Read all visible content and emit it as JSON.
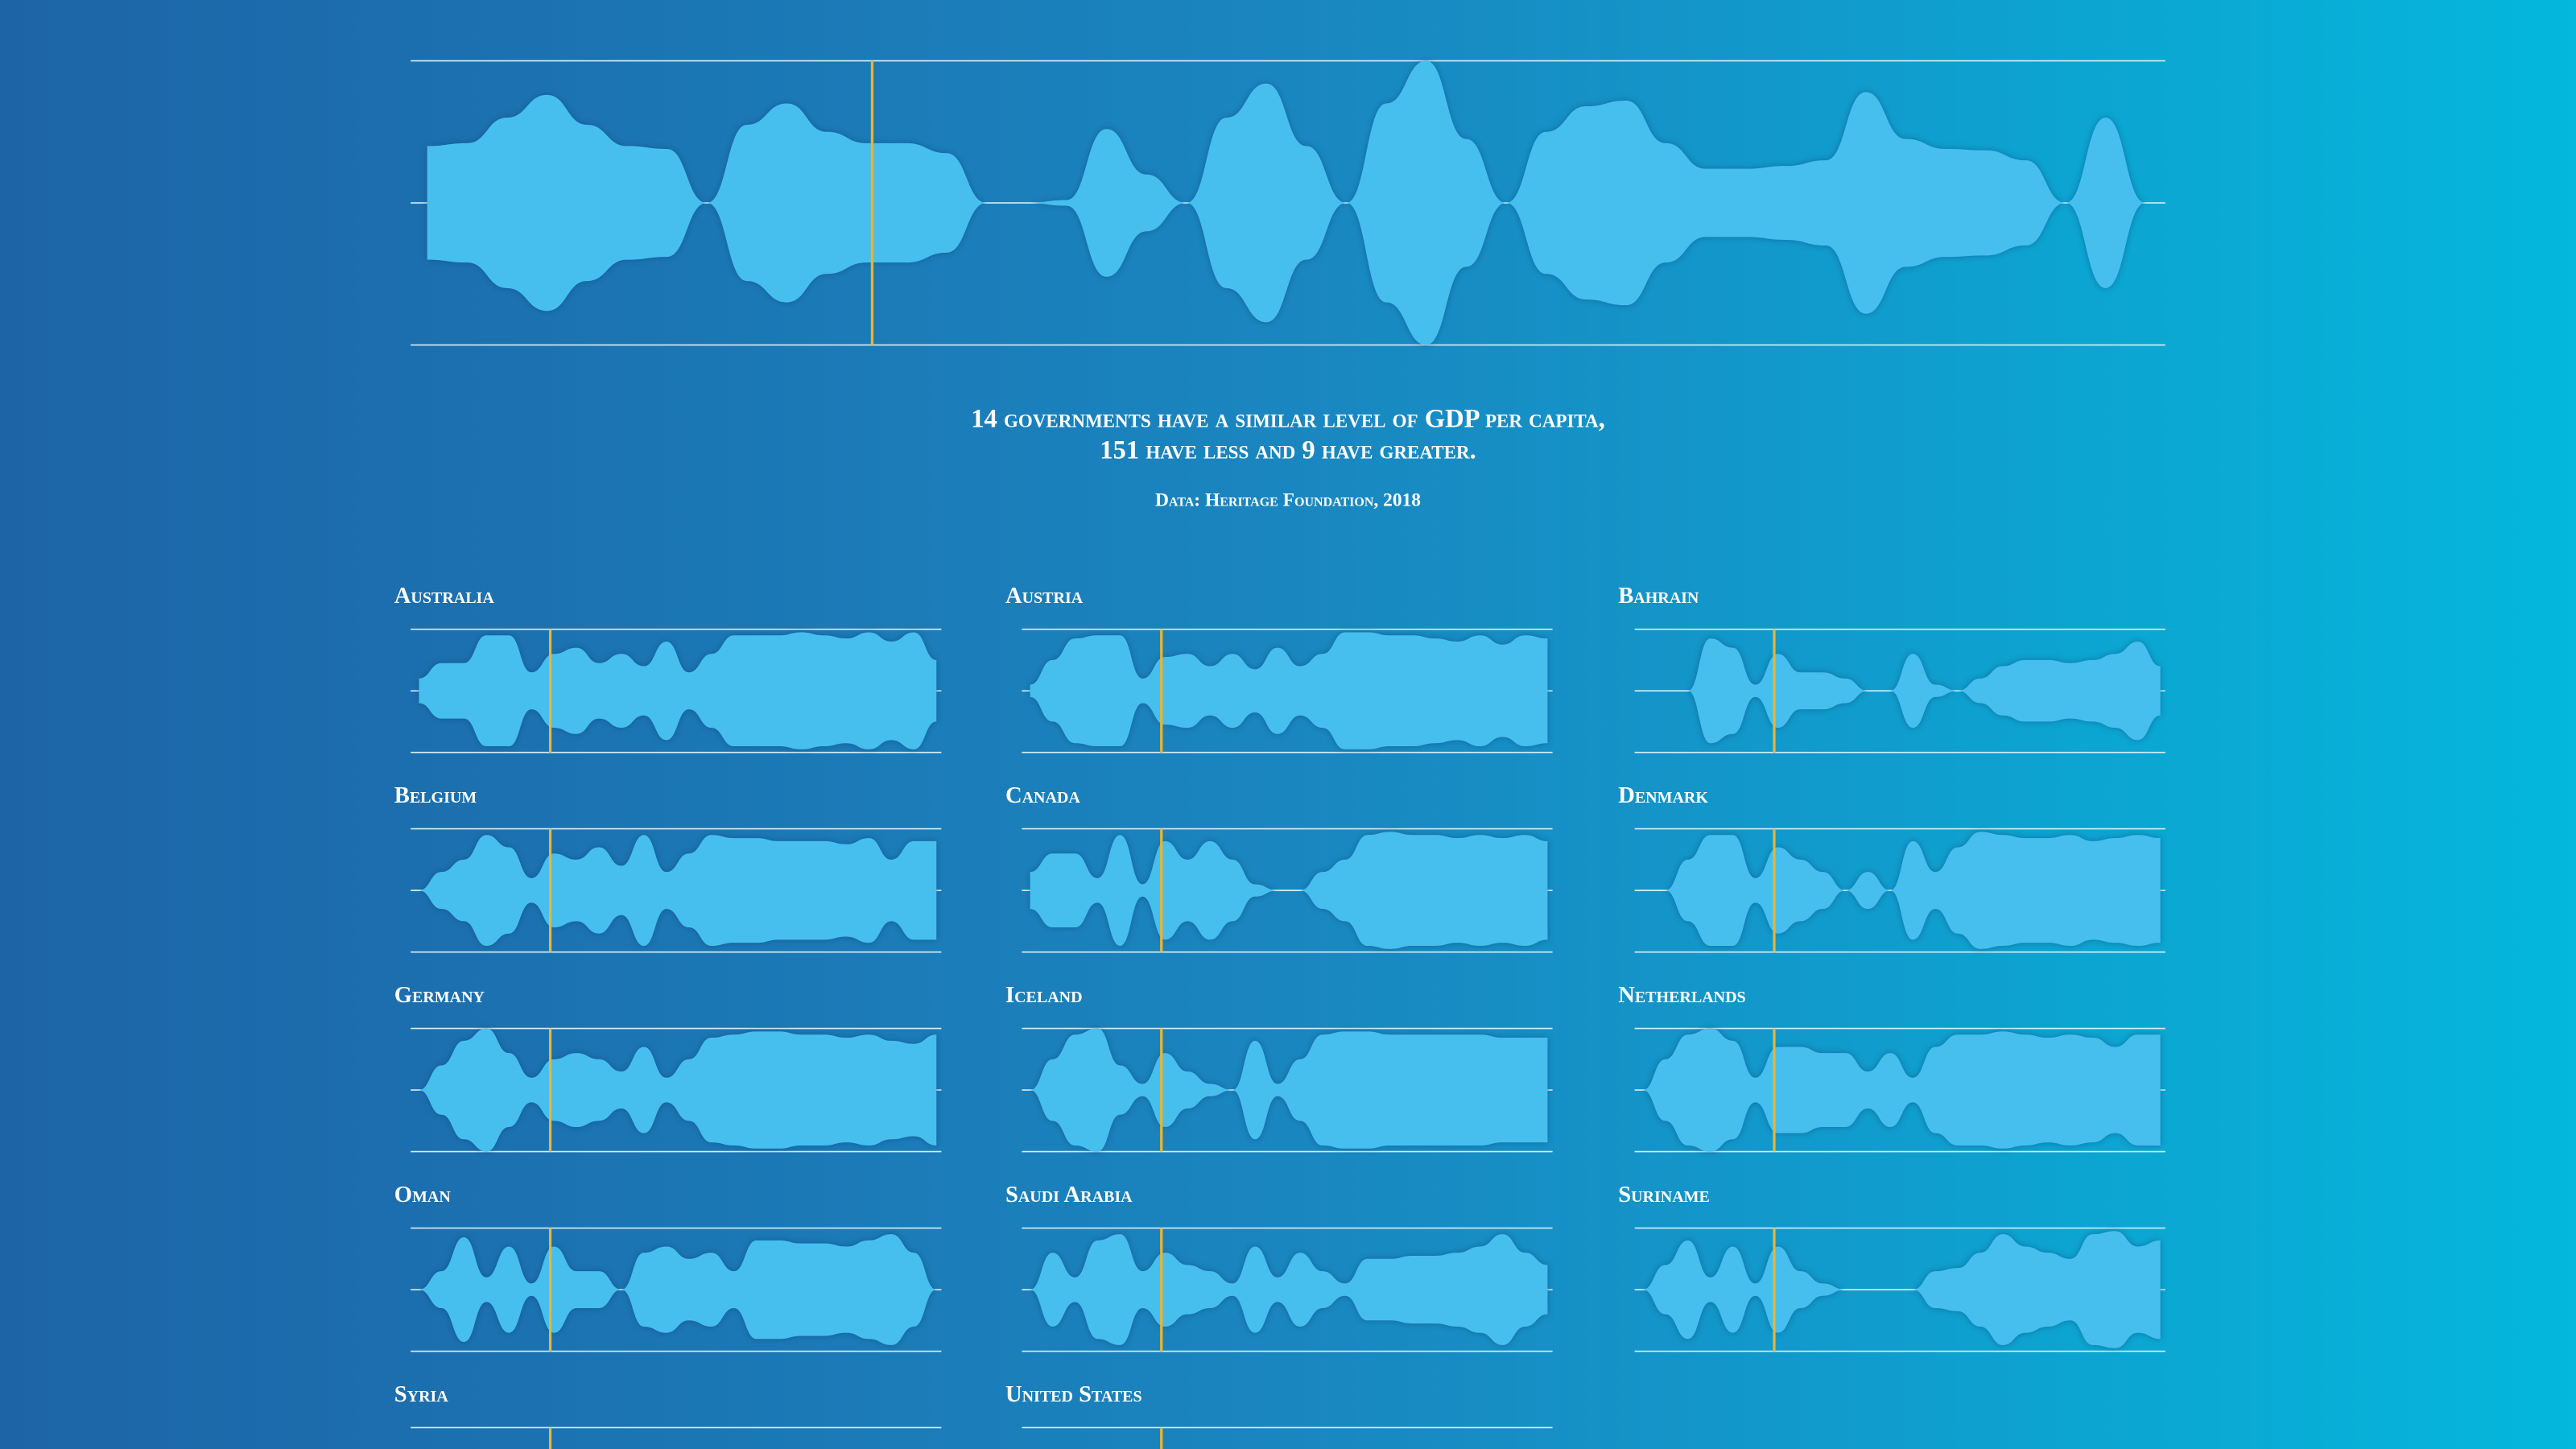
{
  "main": {
    "profile": [
      0.4,
      0.42,
      0.6,
      0.76,
      0.55,
      0.4,
      0.38,
      0,
      0.55,
      0.7,
      0.5,
      0.42,
      0.42,
      0.35,
      0,
      0,
      0.02,
      0.52,
      0.2,
      0,
      0.6,
      0.84,
      0.4,
      0,
      0.7,
      1,
      0.45,
      0,
      0.5,
      0.68,
      0.72,
      0.42,
      0.24,
      0.24,
      0.26,
      0.3,
      0.78,
      0.45,
      0.38,
      0.37,
      0.3,
      0,
      0.6,
      0
    ],
    "marker": 0.263
  },
  "caption": {
    "line1": "14 governments have a similar level of GDP per capita,",
    "line2": "151 have less and 9 have greater.",
    "source": "Data: Heritage Foundation, 2018"
  },
  "countries": [
    {
      "name": "Australia",
      "profile": [
        0.2,
        0.45,
        0.45,
        0.9,
        0.9,
        0.3,
        0.6,
        0.7,
        0.45,
        0.6,
        0.4,
        0.8,
        0.3,
        0.6,
        0.9,
        0.9,
        0.9,
        0.95,
        0.9,
        0.85,
        0.95,
        0.8,
        0.95,
        0.5
      ]
    },
    {
      "name": "Austria",
      "profile": [
        0.1,
        0.5,
        0.85,
        0.9,
        0.9,
        0.2,
        0.55,
        0.6,
        0.4,
        0.6,
        0.35,
        0.7,
        0.4,
        0.6,
        0.95,
        0.95,
        0.9,
        0.9,
        0.85,
        0.8,
        0.9,
        0.75,
        0.9,
        0.85
      ]
    },
    {
      "name": "Bahrain",
      "profile": [
        0,
        0,
        0,
        0.85,
        0.7,
        0.1,
        0.6,
        0.3,
        0.3,
        0.2,
        0,
        0,
        0.6,
        0.1,
        0,
        0.2,
        0.4,
        0.5,
        0.5,
        0.45,
        0.5,
        0.6,
        0.8,
        0.4
      ]
    },
    {
      "name": "Belgium",
      "profile": [
        0,
        0.3,
        0.5,
        0.9,
        0.7,
        0.2,
        0.6,
        0.5,
        0.7,
        0.4,
        0.9,
        0.3,
        0.6,
        0.9,
        0.85,
        0.85,
        0.8,
        0.8,
        0.8,
        0.75,
        0.85,
        0.5,
        0.8,
        0.8
      ]
    },
    {
      "name": "Canada",
      "profile": [
        0.3,
        0.6,
        0.6,
        0.2,
        0.9,
        0.1,
        0.8,
        0.5,
        0.8,
        0.5,
        0.1,
        0,
        0,
        0.3,
        0.5,
        0.9,
        0.95,
        0.9,
        0.9,
        0.85,
        0.9,
        0.85,
        0.9,
        0.8
      ]
    },
    {
      "name": "Denmark",
      "profile": [
        0,
        0,
        0.5,
        0.9,
        0.9,
        0.2,
        0.7,
        0.5,
        0.3,
        0,
        0.3,
        0,
        0.8,
        0.3,
        0.7,
        0.95,
        0.9,
        0.85,
        0.85,
        0.9,
        0.8,
        0.85,
        0.9,
        0.85
      ]
    },
    {
      "name": "Germany",
      "profile": [
        0,
        0.4,
        0.8,
        1,
        0.6,
        0.2,
        0.5,
        0.6,
        0.5,
        0.3,
        0.7,
        0.2,
        0.5,
        0.85,
        0.9,
        0.95,
        0.95,
        0.9,
        0.9,
        0.85,
        0.9,
        0.8,
        0.75,
        0.9
      ]
    },
    {
      "name": "Iceland",
      "profile": [
        0,
        0.5,
        0.9,
        1,
        0.4,
        0.1,
        0.6,
        0.3,
        0.1,
        0,
        0.8,
        0.1,
        0.5,
        0.9,
        0.95,
        0.95,
        0.9,
        0.9,
        0.9,
        0.9,
        0.9,
        0.85,
        0.85,
        0.85
      ]
    },
    {
      "name": "Netherlands",
      "profile": [
        0,
        0.5,
        0.9,
        1,
        0.8,
        0.2,
        0.7,
        0.7,
        0.6,
        0.6,
        0.3,
        0.6,
        0.2,
        0.7,
        0.9,
        0.9,
        0.95,
        0.9,
        0.85,
        0.9,
        0.85,
        0.7,
        0.9,
        0.9
      ]
    },
    {
      "name": "Oman",
      "profile": [
        0,
        0.3,
        0.85,
        0.2,
        0.7,
        0.1,
        0.7,
        0.3,
        0.3,
        0,
        0.6,
        0.7,
        0.5,
        0.6,
        0.3,
        0.8,
        0.8,
        0.75,
        0.75,
        0.7,
        0.8,
        0.9,
        0.6,
        0
      ]
    },
    {
      "name": "Saudi Arabia",
      "profile": [
        0,
        0.6,
        0.2,
        0.8,
        0.9,
        0.3,
        0.6,
        0.4,
        0.3,
        0.1,
        0.7,
        0.2,
        0.6,
        0.3,
        0.1,
        0.5,
        0.5,
        0.55,
        0.55,
        0.6,
        0.7,
        0.9,
        0.6,
        0.4
      ]
    },
    {
      "name": "Suriname",
      "profile": [
        0,
        0.4,
        0.8,
        0.2,
        0.7,
        0.1,
        0.7,
        0.3,
        0.1,
        0,
        0,
        0,
        0,
        0.3,
        0.35,
        0.6,
        0.9,
        0.7,
        0.6,
        0.5,
        0.9,
        0.95,
        0.7,
        0.8
      ]
    },
    {
      "name": "Syria",
      "profile": []
    },
    {
      "name": "United States",
      "profile": []
    }
  ]
}
